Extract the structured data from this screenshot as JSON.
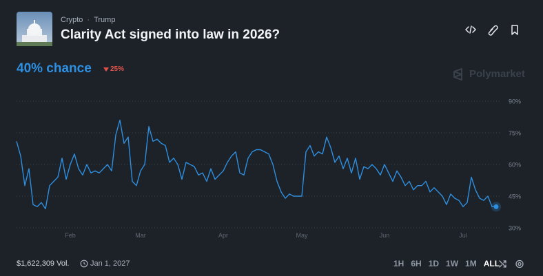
{
  "header": {
    "category": "Crypto",
    "tag": "Trump",
    "title": "Clarity Act signed into law in 2026?"
  },
  "odds": {
    "chance": "40% chance",
    "change": "25%"
  },
  "brand": "Polymarket",
  "chart_data": {
    "type": "line",
    "color": "#2e8fe0",
    "categories": [
      null,
      null,
      null,
      null,
      null,
      null,
      null,
      null,
      null,
      null,
      null,
      null,
      null,
      "Feb",
      null,
      null,
      null,
      null,
      null,
      null,
      null,
      null,
      null,
      null,
      null,
      null,
      null,
      null,
      null,
      null,
      "Mar",
      null,
      null,
      null,
      null,
      null,
      null,
      null,
      null,
      null,
      null,
      null,
      null,
      null,
      null,
      null,
      null,
      null,
      null,
      null,
      "Apr",
      null,
      null,
      null,
      null,
      null,
      null,
      null,
      null,
      null,
      null,
      null,
      null,
      null,
      null,
      null,
      null,
      null,
      null,
      "May",
      null,
      null,
      null,
      null,
      null,
      null,
      null,
      null,
      null,
      null,
      null,
      null,
      null,
      null,
      null,
      null,
      null,
      null,
      null,
      "Jun",
      null,
      null,
      null,
      null,
      null,
      null,
      null,
      null,
      null,
      null,
      null,
      null,
      null,
      null,
      null,
      null,
      null,
      null,
      "Jul",
      null,
      null,
      null,
      null,
      null,
      null,
      null,
      null
    ],
    "values": [
      71,
      64,
      50,
      58,
      41,
      40,
      42,
      39,
      50,
      52,
      54,
      63,
      53,
      60,
      65,
      58,
      55,
      60,
      56,
      57,
      56,
      58,
      60,
      57,
      74,
      81,
      70,
      73,
      52,
      50,
      57,
      60,
      78,
      71,
      72,
      70,
      69,
      61,
      63,
      60,
      53,
      61,
      60,
      59,
      55,
      56,
      52,
      58,
      53,
      55,
      57,
      61,
      64,
      66,
      56,
      55,
      63,
      66,
      67,
      67,
      66,
      65,
      60,
      52,
      47,
      44,
      46,
      45,
      45,
      45,
      66,
      69,
      64,
      66,
      65,
      73,
      68,
      61,
      64,
      58,
      63,
      56,
      63,
      53,
      59,
      58,
      60,
      58,
      55,
      60,
      56,
      52,
      57,
      54,
      50,
      52,
      48,
      50,
      50,
      52,
      47,
      49,
      47,
      45,
      41,
      46,
      44,
      43,
      40,
      42,
      54,
      48,
      44,
      43,
      45,
      40,
      40
    ],
    "ylim": [
      30,
      90
    ],
    "yticks": [
      {
        "value": 30,
        "label": "30%"
      },
      {
        "value": 45,
        "label": "45%"
      },
      {
        "value": 60,
        "label": "60%"
      },
      {
        "value": 75,
        "label": "75%"
      },
      {
        "value": 90,
        "label": "90%"
      }
    ],
    "grid": true
  },
  "footer": {
    "volume": "$1,622,309 Vol.",
    "end_date": "Jan 1, 2027",
    "ranges": [
      "1H",
      "6H",
      "1D",
      "1W",
      "1M",
      "ALL"
    ]
  }
}
